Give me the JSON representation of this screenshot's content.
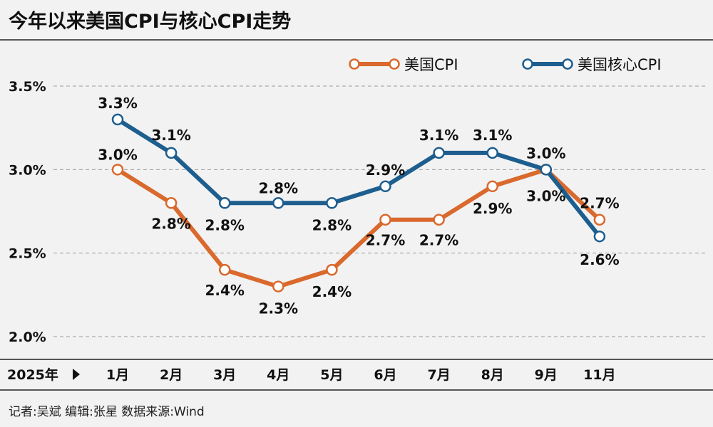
{
  "title": "今年以来美国CPI与核心CPI走势",
  "footer": "记者:吴斌   编辑:张星   数据来源:Wind",
  "colors": {
    "cpi": "#d9692c",
    "core": "#1d5e8f",
    "grid": "#9a9a9a",
    "bg": "#f2f2f2"
  },
  "chart_data": {
    "type": "line",
    "title": "今年以来美国CPI与核心CPI走势",
    "x_axis_title": "2025年",
    "categories": [
      "1月",
      "2月",
      "3月",
      "4月",
      "5月",
      "6月",
      "7月",
      "8月",
      "9月",
      "11月"
    ],
    "ylim": [
      2.0,
      3.5
    ],
    "yticks": [
      {
        "value": 2.0,
        "label": "2.0%"
      },
      {
        "value": 2.5,
        "label": "2.5%"
      },
      {
        "value": 3.0,
        "label": "3.0%"
      },
      {
        "value": 3.5,
        "label": "3.5%"
      }
    ],
    "grid": "horizontal dashed",
    "legend_position": "top-right",
    "series": [
      {
        "key": "cpi",
        "name": "美国CPI",
        "color": "#d9692c",
        "values": [
          3.0,
          2.8,
          2.4,
          2.3,
          2.4,
          2.7,
          2.7,
          2.9,
          3.0,
          2.7
        ],
        "labels": [
          "3.0%",
          "2.8%",
          "2.4%",
          "2.3%",
          "2.4%",
          "2.7%",
          "2.7%",
          "2.9%",
          "3.0%",
          "2.7%"
        ]
      },
      {
        "key": "core",
        "name": "美国核心CPI",
        "color": "#1d5e8f",
        "values": [
          3.3,
          3.1,
          2.8,
          2.8,
          2.8,
          2.9,
          3.1,
          3.1,
          3.0,
          2.6
        ],
        "labels": [
          "3.3%",
          "3.1%",
          "2.8%",
          "2.8%",
          "2.8%",
          "2.9%",
          "3.1%",
          "3.1%",
          "3.0%",
          "2.6%"
        ]
      }
    ]
  }
}
